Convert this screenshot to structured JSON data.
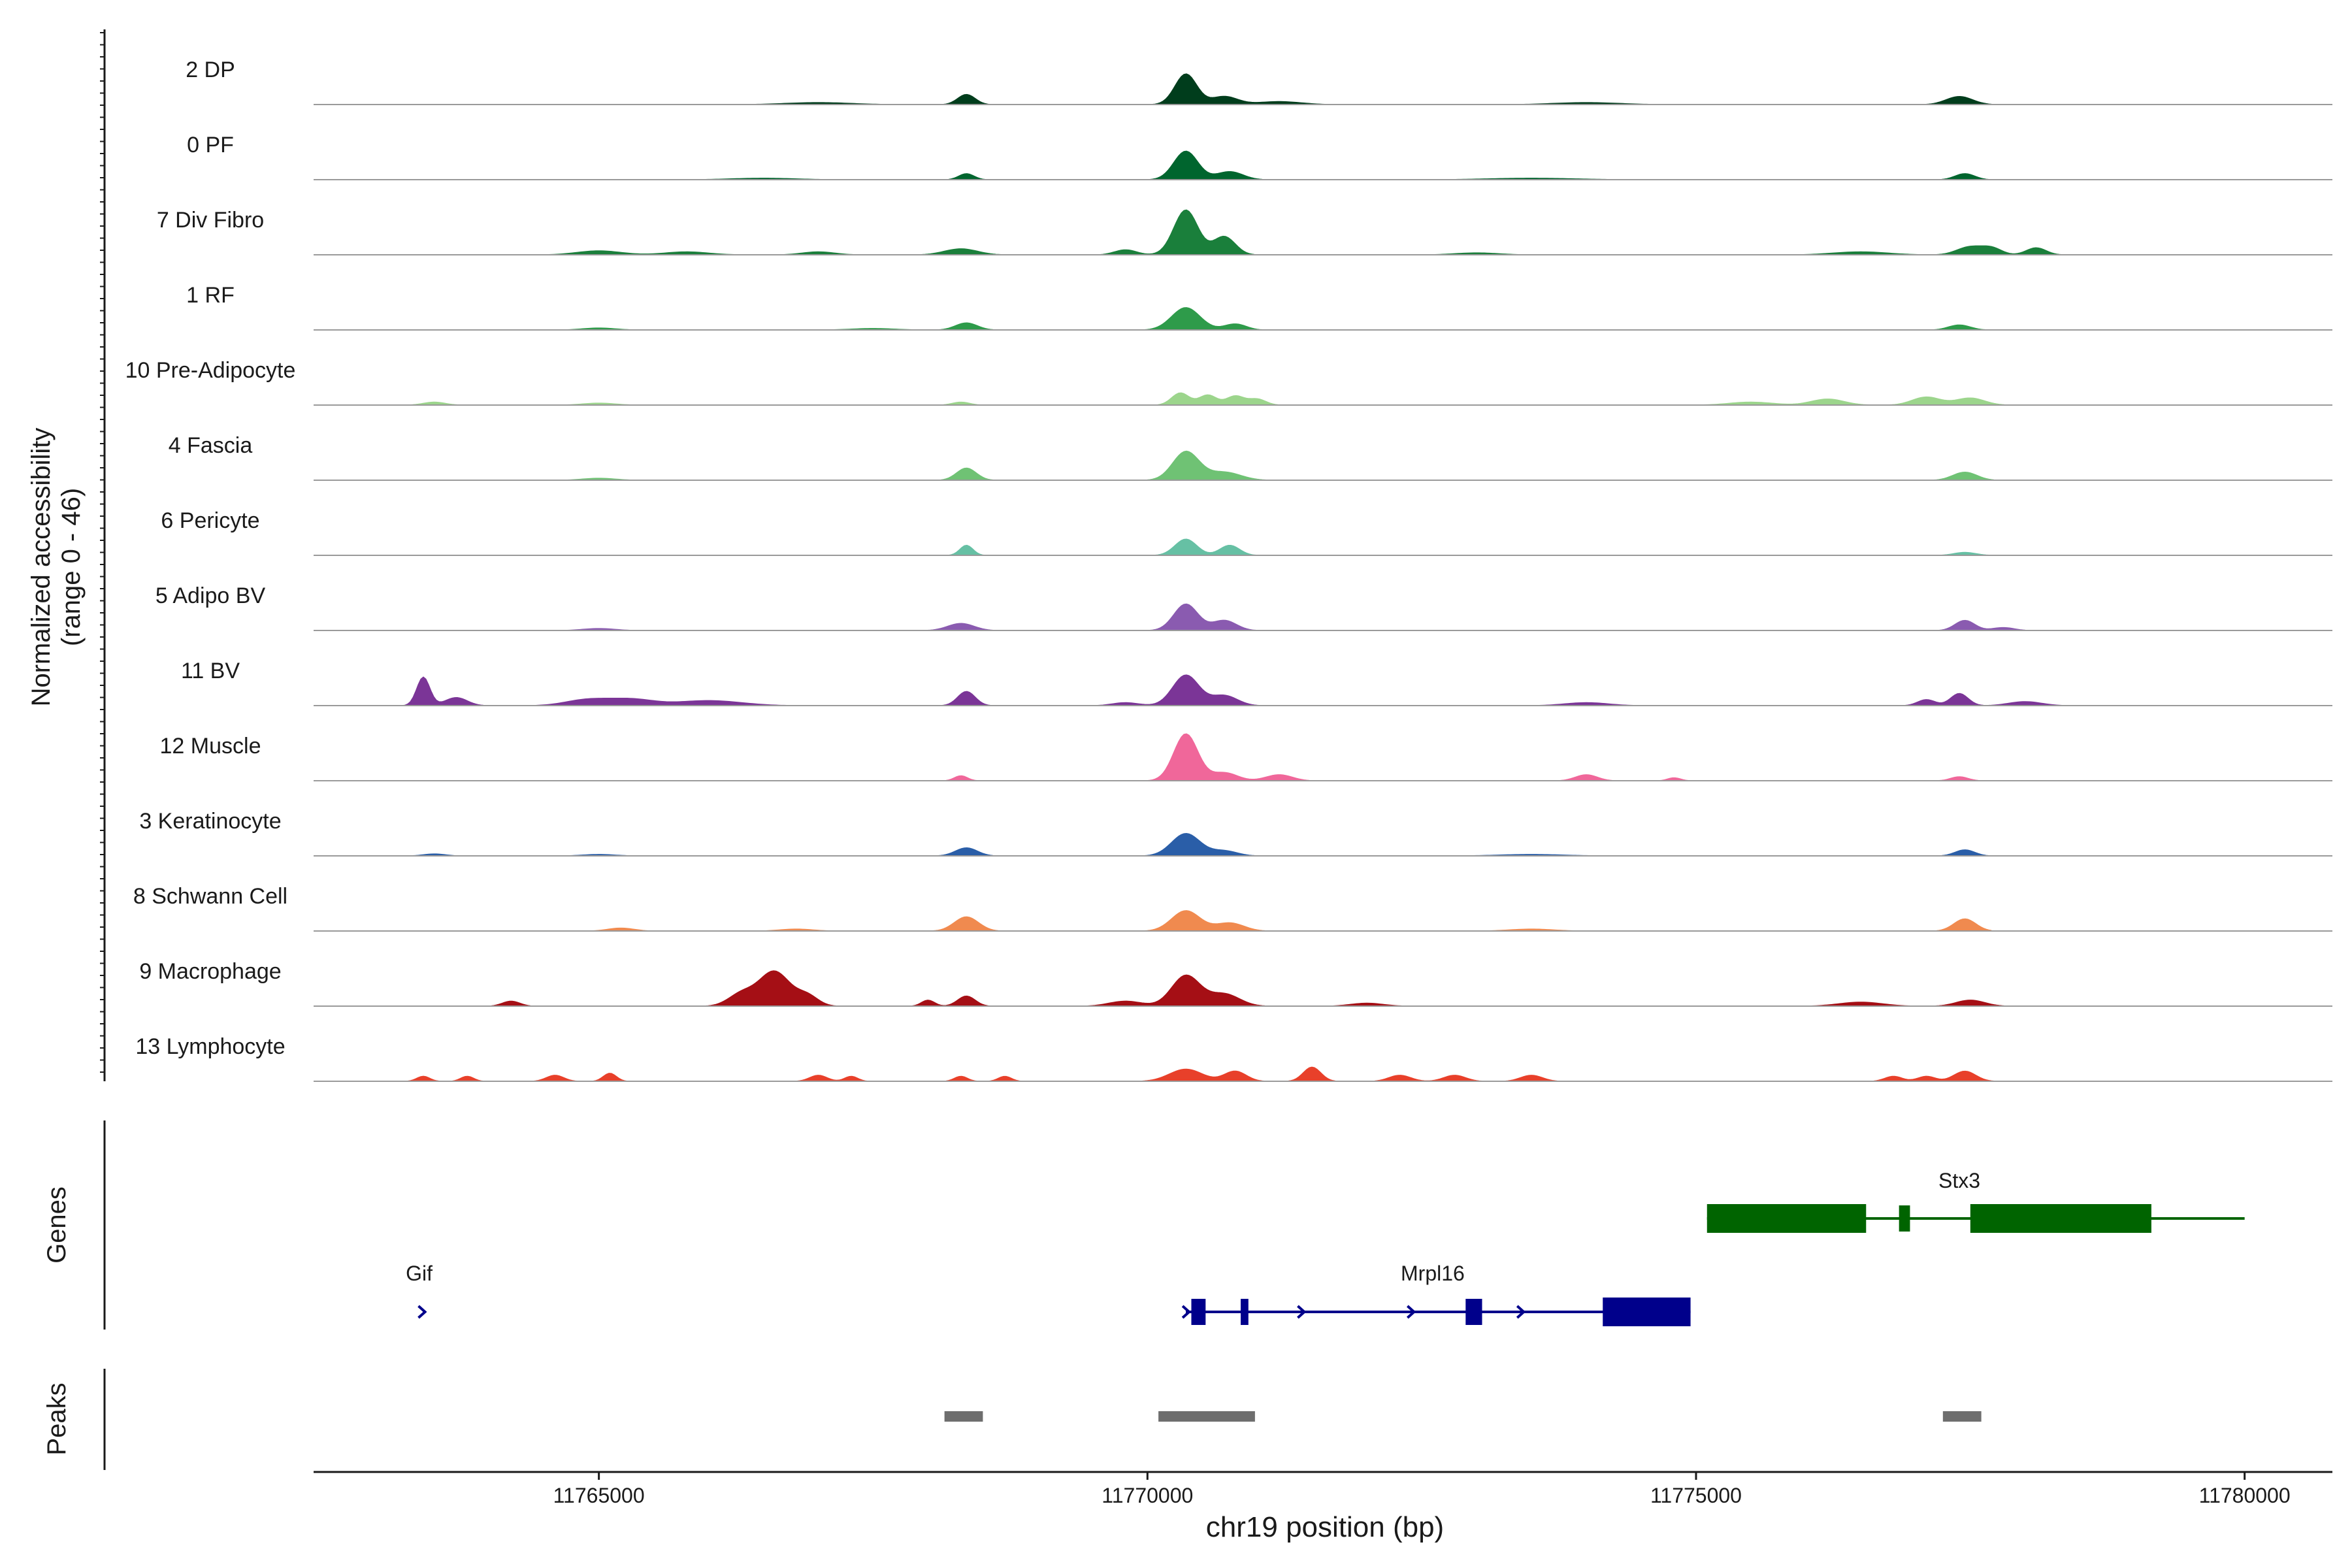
{
  "chart_data": {
    "type": "area",
    "title": "",
    "xlabel": "chr19 position (bp)",
    "ylabel": "Normalized accessibility",
    "ylabel_range": "(range 0 - 46)",
    "xlim": [
      11762400,
      11780800
    ],
    "xticks": [
      11765000,
      11770000,
      11775000,
      11780000
    ],
    "xtick_labels": [
      "11765000",
      "11770000",
      "11775000",
      "11780000"
    ],
    "track_max": 46,
    "tracks": [
      {
        "label": "2 DP",
        "color": "#003d1c",
        "peaks": [
          [
            11770350,
            30,
            100
          ],
          [
            11768350,
            10,
            80
          ],
          [
            11770700,
            8,
            120
          ],
          [
            11771200,
            3,
            200
          ],
          [
            11777400,
            8,
            120
          ],
          [
            11767000,
            2,
            300
          ],
          [
            11774000,
            2,
            300
          ]
        ]
      },
      {
        "label": "0 PF",
        "color": "#00652e",
        "peaks": [
          [
            11770350,
            28,
            110
          ],
          [
            11768350,
            6,
            70
          ],
          [
            11770750,
            8,
            120
          ],
          [
            11777450,
            6,
            90
          ],
          [
            11766500,
            1.5,
            300
          ],
          [
            11773500,
            1.5,
            400
          ]
        ]
      },
      {
        "label": "7 Div Fibro",
        "color": "#1a7f3b",
        "peaks": [
          [
            11770350,
            44,
            110
          ],
          [
            11770700,
            18,
            100
          ],
          [
            11768300,
            6,
            150
          ],
          [
            11769800,
            5,
            100
          ],
          [
            11778100,
            7,
            90
          ],
          [
            11777500,
            8,
            120
          ],
          [
            11777700,
            6,
            90
          ],
          [
            11765000,
            4,
            200
          ],
          [
            11765800,
            3,
            200
          ],
          [
            11767000,
            3,
            150
          ],
          [
            11776500,
            3,
            250
          ],
          [
            11773000,
            2,
            200
          ]
        ]
      },
      {
        "label": "1 RF",
        "color": "#2e9b4a",
        "peaks": [
          [
            11770350,
            22,
            130
          ],
          [
            11770800,
            6,
            100
          ],
          [
            11768350,
            7,
            100
          ],
          [
            11777400,
            5,
            100
          ],
          [
            11765000,
            2,
            150
          ],
          [
            11767500,
            1.5,
            200
          ]
        ]
      },
      {
        "label": "10 Pre-Adipocyte",
        "color": "#9cd58c",
        "peaks": [
          [
            11770300,
            12,
            80
          ],
          [
            11770550,
            10,
            80
          ],
          [
            11770800,
            9,
            80
          ],
          [
            11771000,
            6,
            80
          ],
          [
            11777100,
            8,
            130
          ],
          [
            11777500,
            7,
            130
          ],
          [
            11776200,
            6,
            150
          ],
          [
            11763500,
            3,
            100
          ],
          [
            11768300,
            3,
            80
          ],
          [
            11765000,
            2,
            150
          ],
          [
            11775500,
            3,
            200
          ]
        ]
      },
      {
        "label": "4 Fascia",
        "color": "#6fc274",
        "peaks": [
          [
            11770350,
            28,
            120
          ],
          [
            11770700,
            8,
            150
          ],
          [
            11768350,
            12,
            90
          ],
          [
            11777450,
            8,
            110
          ],
          [
            11765000,
            2,
            150
          ]
        ]
      },
      {
        "label": "6 Pericyte",
        "color": "#66c0a4",
        "peaks": [
          [
            11770350,
            16,
            100
          ],
          [
            11770750,
            10,
            90
          ],
          [
            11768350,
            10,
            60
          ],
          [
            11777450,
            3,
            100
          ]
        ]
      },
      {
        "label": "5 Adipo BV",
        "color": "#8a5bb0",
        "peaks": [
          [
            11770350,
            26,
            110
          ],
          [
            11770700,
            10,
            110
          ],
          [
            11768300,
            7,
            120
          ],
          [
            11777450,
            10,
            90
          ],
          [
            11777800,
            3,
            100
          ],
          [
            11765000,
            2,
            150
          ]
        ]
      },
      {
        "label": "11 BV",
        "color": "#7b3597",
        "peaks": [
          [
            11763400,
            28,
            60
          ],
          [
            11763700,
            8,
            100
          ],
          [
            11764900,
            6,
            200
          ],
          [
            11765300,
            6,
            200
          ],
          [
            11766000,
            5,
            300
          ],
          [
            11768350,
            14,
            80
          ],
          [
            11770350,
            30,
            120
          ],
          [
            11770700,
            10,
            120
          ],
          [
            11769800,
            3,
            120
          ],
          [
            11777400,
            12,
            80
          ],
          [
            11777100,
            6,
            80
          ],
          [
            11778000,
            4,
            150
          ],
          [
            11774000,
            3,
            200
          ]
        ]
      },
      {
        "label": "12 Muscle",
        "color": "#f0679a",
        "peaks": [
          [
            11770350,
            46,
            110
          ],
          [
            11770700,
            8,
            120
          ],
          [
            11771200,
            6,
            120
          ],
          [
            11768300,
            5,
            60
          ],
          [
            11774000,
            6,
            100
          ],
          [
            11774800,
            3,
            60
          ],
          [
            11777400,
            4,
            80
          ]
        ]
      },
      {
        "label": "3 Keratinocyte",
        "color": "#2a5ea8",
        "peaks": [
          [
            11770350,
            22,
            130
          ],
          [
            11770700,
            5,
            120
          ],
          [
            11768350,
            8,
            100
          ],
          [
            11777450,
            6,
            90
          ],
          [
            11763500,
            2,
            100
          ],
          [
            11765000,
            1.5,
            150
          ],
          [
            11773500,
            1.5,
            300
          ]
        ]
      },
      {
        "label": "8 Schwann Cell",
        "color": "#f08a4f",
        "peaks": [
          [
            11770350,
            20,
            130
          ],
          [
            11770750,
            8,
            130
          ],
          [
            11768350,
            14,
            110
          ],
          [
            11777450,
            12,
            100
          ],
          [
            11765200,
            3,
            120
          ],
          [
            11766800,
            2,
            150
          ],
          [
            11773500,
            2,
            200
          ]
        ]
      },
      {
        "label": "9 Macrophage",
        "color": "#a50f15",
        "peaks": [
          [
            11766600,
            34,
            140
          ],
          [
            11766300,
            12,
            120
          ],
          [
            11766900,
            10,
            100
          ],
          [
            11770350,
            30,
            130
          ],
          [
            11770700,
            12,
            140
          ],
          [
            11769800,
            5,
            150
          ],
          [
            11768350,
            10,
            80
          ],
          [
            11768000,
            6,
            60
          ],
          [
            11764200,
            5,
            80
          ],
          [
            11777500,
            6,
            130
          ],
          [
            11776500,
            4,
            200
          ],
          [
            11772000,
            3,
            150
          ]
        ]
      },
      {
        "label": "13 Lymphocyte",
        "color": "#e8402a",
        "peaks": [
          [
            11770350,
            12,
            150
          ],
          [
            11770800,
            10,
            100
          ],
          [
            11771500,
            14,
            80
          ],
          [
            11772300,
            6,
            100
          ],
          [
            11772800,
            6,
            100
          ],
          [
            11773500,
            6,
            100
          ],
          [
            11777450,
            10,
            100
          ],
          [
            11763400,
            5,
            60
          ],
          [
            11763800,
            5,
            60
          ],
          [
            11764600,
            6,
            80
          ],
          [
            11765100,
            8,
            60
          ],
          [
            11767000,
            6,
            80
          ],
          [
            11767300,
            5,
            60
          ],
          [
            11768300,
            5,
            60
          ],
          [
            11768700,
            5,
            60
          ],
          [
            11776800,
            5,
            80
          ],
          [
            11777100,
            5,
            80
          ]
        ]
      }
    ],
    "genes_label": "Genes",
    "peaks_label": "Peaks",
    "genes": [
      {
        "name": "Stx3",
        "start": 11775100,
        "end": 11780000,
        "strand": "+",
        "color": "#006400",
        "exons": [
          [
            11775100,
            11776550
          ],
          [
            11776850,
            11776950
          ],
          [
            11777500,
            11779150
          ]
        ]
      },
      {
        "name": "Gif",
        "start": 11763350,
        "end": 11763420,
        "strand": "+",
        "color": "#00008b",
        "exons": []
      },
      {
        "name": "Mrpl16",
        "start": 11770350,
        "end": 11774950,
        "strand": "+",
        "color": "#00008b",
        "exons": [
          [
            11770400,
            11770530
          ],
          [
            11770850,
            11770920
          ],
          [
            11772900,
            11773050
          ],
          [
            11774150,
            11774950
          ]
        ]
      }
    ],
    "peak_regions": [
      [
        11768150,
        11768500
      ],
      [
        11770100,
        11770980
      ],
      [
        11777250,
        11777600
      ]
    ]
  }
}
